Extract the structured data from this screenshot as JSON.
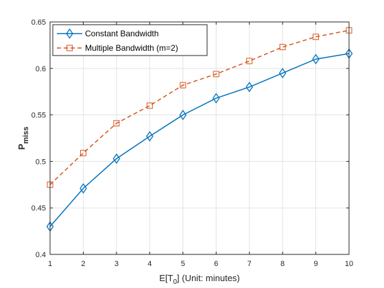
{
  "chart_data": {
    "type": "line",
    "x": [
      1,
      2,
      3,
      4,
      5,
      6,
      7,
      8,
      9,
      10
    ],
    "xlim": [
      1,
      10
    ],
    "ylim": [
      0.4,
      0.65
    ],
    "xticks": [
      "1",
      "2",
      "3",
      "4",
      "5",
      "6",
      "7",
      "8",
      "9",
      "10"
    ],
    "yticks": [
      "0.4",
      "0.45",
      "0.5",
      "0.55",
      "0.6",
      "0.65"
    ],
    "xlabel": {
      "main": "E[T",
      "sub": "0",
      "tail": "] (Unit: minutes)"
    },
    "ylabel": {
      "main": "P",
      "sub": "miss"
    },
    "grid": true,
    "legend_position": "top-left",
    "series": [
      {
        "name": "Constant Bandwidth",
        "color": "#0072BD",
        "line_style": "solid",
        "marker": "diamond",
        "values": [
          0.43,
          0.471,
          0.503,
          0.527,
          0.55,
          0.568,
          0.58,
          0.595,
          0.61,
          0.616
        ]
      },
      {
        "name": "Multiple Bandwidth (m=2)",
        "color": "#D95319",
        "line_style": "dashed",
        "marker": "square",
        "values": [
          0.475,
          0.509,
          0.541,
          0.56,
          0.582,
          0.594,
          0.608,
          0.623,
          0.634,
          0.641
        ]
      }
    ]
  }
}
